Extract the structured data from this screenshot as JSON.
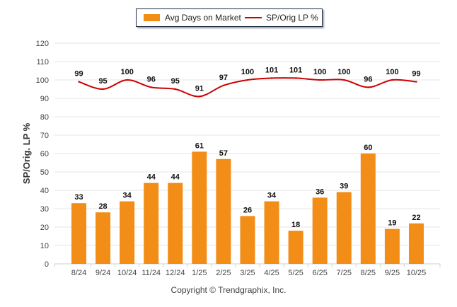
{
  "chart_data": {
    "type": "bar",
    "title": "",
    "xlabel": "",
    "ylabel": "SP/Orig. LP %",
    "ylim": [
      0,
      120
    ],
    "yticks": [
      0,
      10,
      20,
      30,
      40,
      50,
      60,
      70,
      80,
      90,
      100,
      110,
      120
    ],
    "grid": true,
    "legend_position": "top-center",
    "categories": [
      "8/24",
      "9/24",
      "10/24",
      "11/24",
      "12/24",
      "1/25",
      "2/25",
      "3/25",
      "4/25",
      "5/25",
      "6/25",
      "7/25",
      "8/25",
      "9/25",
      "10/25"
    ],
    "series": [
      {
        "name": "Avg Days on Market",
        "type": "bar",
        "color": "#f28d17",
        "values": [
          33,
          28,
          34,
          44,
          44,
          61,
          57,
          26,
          34,
          18,
          36,
          39,
          60,
          19,
          22
        ]
      },
      {
        "name": "SP/Orig LP %",
        "type": "line",
        "color": "#cc0000",
        "values": [
          99,
          95,
          100,
          96,
          95,
          91,
          97,
          100,
          101,
          101,
          100,
          100,
          96,
          100,
          99
        ]
      }
    ]
  },
  "legend": {
    "bar_label": "Avg Days on Market",
    "line_label": "SP/Orig LP %"
  },
  "footer": {
    "copyright": "Copyright © Trendgraphix, Inc."
  }
}
